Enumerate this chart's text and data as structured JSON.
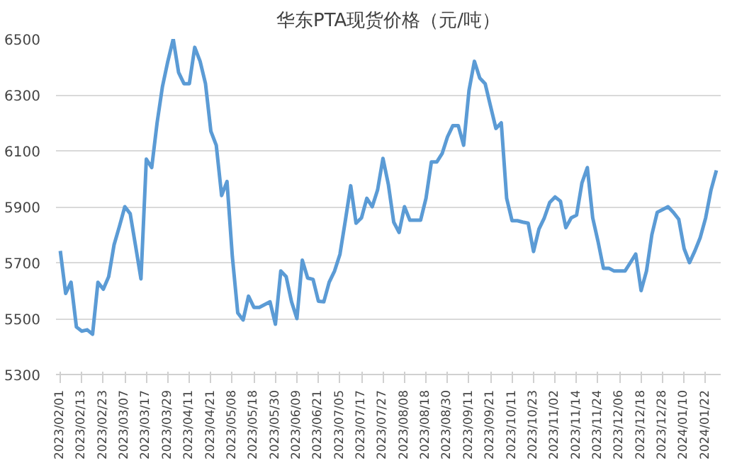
{
  "chart_data": {
    "type": "line",
    "title": "华东PTA现货价格（元/吨）",
    "categories": [
      "2023/02/01",
      null,
      null,
      null,
      "2023/02/13",
      null,
      null,
      null,
      "2023/02/23",
      null,
      null,
      null,
      "2023/03/07",
      null,
      null,
      null,
      "2023/03/17",
      null,
      null,
      null,
      "2023/03/29",
      null,
      null,
      null,
      "2023/04/11",
      null,
      null,
      null,
      "2023/04/21",
      null,
      null,
      null,
      "2023/05/08",
      null,
      null,
      null,
      "2023/05/18",
      null,
      null,
      null,
      "2023/05/30",
      null,
      null,
      null,
      "2023/06/09",
      null,
      null,
      null,
      "2023/06/21",
      null,
      null,
      null,
      "2023/07/05",
      null,
      null,
      null,
      "2023/07/17",
      null,
      null,
      null,
      "2023/07/27",
      null,
      null,
      null,
      "2023/08/08",
      null,
      null,
      null,
      "2023/08/18",
      null,
      null,
      null,
      "2023/08/30",
      null,
      null,
      null,
      "2023/09/11",
      null,
      null,
      null,
      "2023/09/21",
      null,
      null,
      null,
      "2023/10/11",
      null,
      null,
      null,
      "2023/10/23",
      null,
      null,
      null,
      "2023/11/02",
      null,
      null,
      null,
      "2023/11/14",
      null,
      null,
      null,
      "2023/11/24",
      null,
      null,
      null,
      "2023/12/06",
      null,
      null,
      null,
      "2023/12/18",
      null,
      null,
      null,
      "2023/12/28",
      null,
      null,
      null,
      "2024/01/10",
      null,
      null,
      null,
      "2024/01/22",
      null,
      null
    ],
    "series": [
      {
        "color": "#5b9bd5",
        "values": [
          5742,
          5590,
          5630,
          5470,
          5455,
          5460,
          5444,
          5630,
          5605,
          5650,
          5764,
          5830,
          5900,
          5875,
          5760,
          5642,
          6070,
          6040,
          6200,
          6330,
          6420,
          6500,
          6380,
          6340,
          6340,
          6470,
          6420,
          6340,
          6170,
          6120,
          5940,
          5990,
          5720,
          5520,
          5495,
          5580,
          5540,
          5540,
          5550,
          5560,
          5480,
          5670,
          5650,
          5560,
          5500,
          5709,
          5645,
          5640,
          5562,
          5560,
          5630,
          5670,
          5730,
          5850,
          5975,
          5841,
          5860,
          5930,
          5900,
          5960,
          6073,
          5980,
          5845,
          5808,
          5900,
          5852,
          5852,
          5852,
          5930,
          6060,
          6060,
          6090,
          6150,
          6190,
          6190,
          6120,
          6316,
          6420,
          6360,
          6340,
          6260,
          6180,
          6200,
          5930,
          5850,
          5850,
          5845,
          5841,
          5740,
          5820,
          5860,
          5915,
          5935,
          5920,
          5825,
          5860,
          5870,
          5985,
          6040,
          5860,
          5775,
          5680,
          5680,
          5670,
          5670,
          5670,
          5700,
          5731,
          5600,
          5670,
          5800,
          5880,
          5890,
          5900,
          5880,
          5855,
          5750,
          5700,
          5742,
          5790,
          5860,
          5960,
          6030
        ]
      }
    ],
    "ylim": [
      5300,
      6500
    ],
    "yticks": [
      5300,
      5500,
      5700,
      5900,
      6100,
      6300,
      6500
    ],
    "grid": "y",
    "marker": "none",
    "line_style": "solid"
  }
}
